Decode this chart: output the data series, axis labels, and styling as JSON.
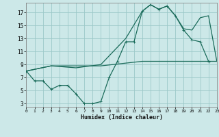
{
  "background_color": "#cce8e8",
  "grid_color": "#9cc8c8",
  "line_color": "#1a6b5a",
  "xlabel": "Humidex (Indice chaleur)",
  "xlim": [
    0,
    23
  ],
  "ylim": [
    2.5,
    18.5
  ],
  "xtick_pos": [
    0,
    1,
    2,
    3,
    4,
    5,
    6,
    7,
    8,
    9,
    10,
    11,
    12,
    13,
    14,
    15,
    16,
    17,
    18,
    19,
    20,
    21,
    22,
    23
  ],
  "xtick_labels": [
    "0",
    "1",
    "2",
    "3",
    "4",
    "5",
    "6",
    "7",
    "8",
    "9",
    "10",
    "11",
    "12",
    "13",
    "14",
    "15",
    "16",
    "17",
    "18",
    "19",
    "20",
    "21",
    "22",
    "23"
  ],
  "ytick_pos": [
    3,
    5,
    7,
    9,
    11,
    13,
    15,
    17
  ],
  "ytick_labels": [
    "3",
    "5",
    "7",
    "9",
    "11",
    "13",
    "15",
    "17"
  ],
  "series1_x": [
    0,
    1,
    2,
    3,
    4,
    5,
    6,
    7,
    8,
    9,
    10,
    11,
    12,
    13,
    14,
    15,
    16,
    17,
    18,
    19,
    20,
    21,
    22
  ],
  "series1_y": [
    8.0,
    6.5,
    6.5,
    5.2,
    5.8,
    5.8,
    4.5,
    3.0,
    3.0,
    3.3,
    7.0,
    9.5,
    12.5,
    12.5,
    17.2,
    18.2,
    17.5,
    18.0,
    16.5,
    14.3,
    12.8,
    12.5,
    9.5
  ],
  "series2_x": [
    0,
    3,
    6,
    9,
    12,
    14,
    15,
    16,
    17,
    18,
    19,
    20,
    21,
    22,
    23
  ],
  "series2_y": [
    8.0,
    8.8,
    8.5,
    9.0,
    13.0,
    17.2,
    18.2,
    17.5,
    18.0,
    16.5,
    14.5,
    14.3,
    16.2,
    16.5,
    9.5
  ],
  "series3_x": [
    0,
    3,
    9,
    14,
    18,
    21,
    23
  ],
  "series3_y": [
    8.0,
    8.8,
    8.8,
    9.5,
    9.5,
    9.5,
    9.5
  ]
}
